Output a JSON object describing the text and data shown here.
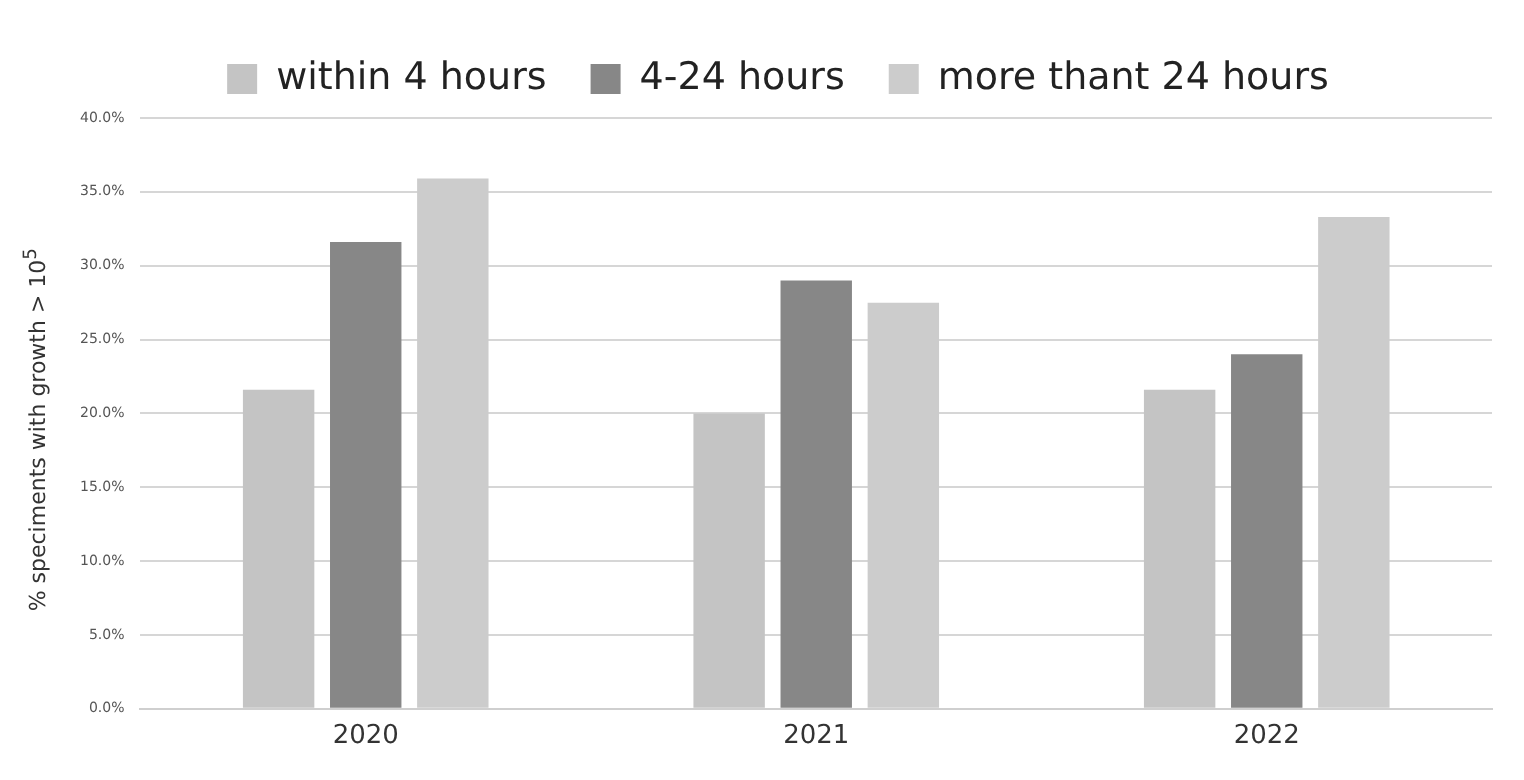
{
  "chart_data": {
    "type": "bar",
    "ylabel": "% speciments with  growth > 10$^{5}$",
    "categories": [
      "2020",
      "2021",
      "2022"
    ],
    "series": [
      {
        "name": "within 4 hours",
        "color": "#c4c4c4",
        "values": [
          21.6,
          20.0,
          21.6
        ]
      },
      {
        "name": "4-24 hours",
        "color": "#878787",
        "values": [
          31.6,
          29.0,
          24.0
        ]
      },
      {
        "name": "more thant 24 hours",
        "color": "#cccccc",
        "values": [
          35.9,
          27.5,
          33.3
        ]
      }
    ],
    "ylim": [
      0,
      40
    ],
    "yticks": [
      {
        "value": 0,
        "label": "0.0%"
      },
      {
        "value": 5,
        "label": "5.0%"
      },
      {
        "value": 10,
        "label": "10.0%"
      },
      {
        "value": 15,
        "label": "15.0%"
      },
      {
        "value": 20,
        "label": "20.0%"
      },
      {
        "value": 25,
        "label": "25.0%"
      },
      {
        "value": 30,
        "label": "30.0%"
      },
      {
        "value": 35,
        "label": "35.0%"
      },
      {
        "value": 40,
        "label": "40.0%"
      }
    ],
    "grid": "y",
    "legend": "top"
  }
}
